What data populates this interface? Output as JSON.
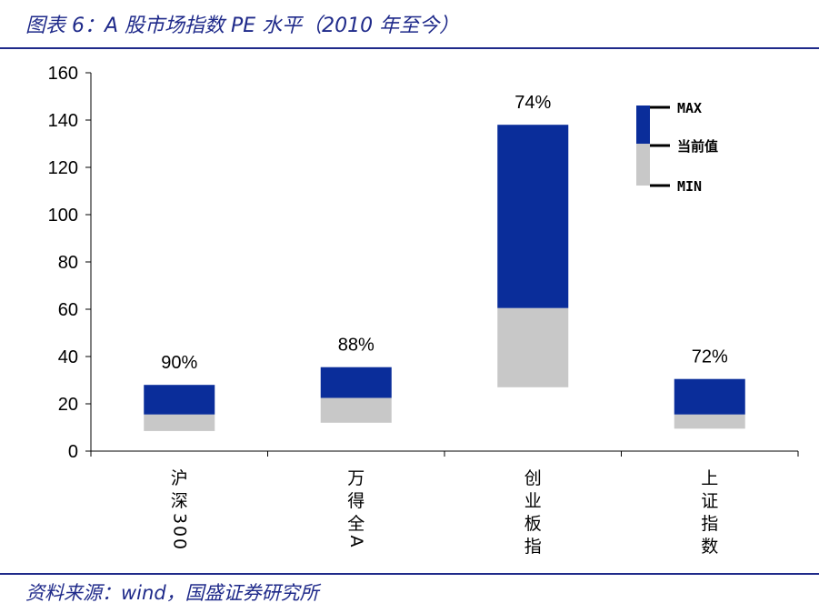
{
  "header": {
    "title": "图表 6：A 股市场指数 PE 水平（2010 年至今）"
  },
  "footer": {
    "source": "资料来源：wind，国盛证券研究所"
  },
  "colors": {
    "upper": "#0a2d9a",
    "lower": "#c8c8c8",
    "rule": "#1f2a8a"
  },
  "chart_data": {
    "type": "bar",
    "subtype": "floating-stacked-range",
    "categories": [
      "沪深300",
      "万得全A",
      "创业板指",
      "上证指数"
    ],
    "series": [
      {
        "name": "MIN",
        "values": [
          8.5,
          12,
          27,
          9.5
        ]
      },
      {
        "name": "当前值",
        "values": [
          15.5,
          22.5,
          60.5,
          15.5
        ]
      },
      {
        "name": "MAX",
        "values": [
          28,
          35.5,
          138,
          30.5
        ]
      }
    ],
    "percentile_labels": [
      "90%",
      "88%",
      "74%",
      "72%"
    ],
    "legend": [
      "MAX",
      "当前值",
      "MIN"
    ],
    "legend_position": "top-right",
    "ylim": [
      0,
      160
    ],
    "yticks": [
      0,
      20,
      40,
      60,
      80,
      100,
      120,
      140,
      160
    ],
    "title": "",
    "xlabel": "",
    "ylabel": ""
  }
}
